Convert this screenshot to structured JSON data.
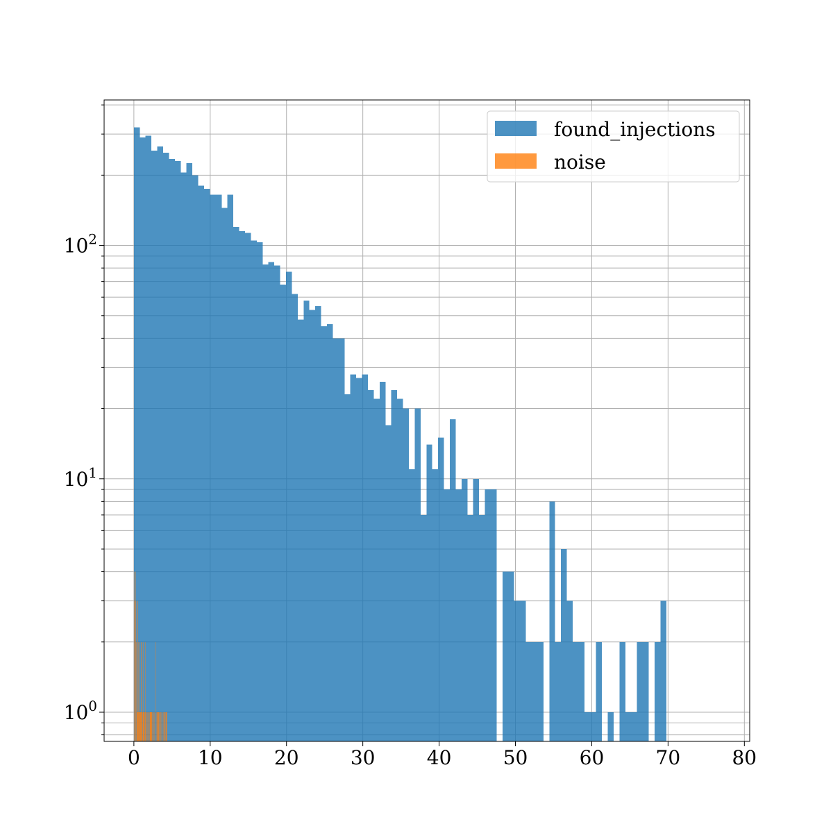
{
  "chart_data": {
    "type": "bar",
    "title": "",
    "xlabel": "",
    "ylabel": "",
    "xlim": [
      -3.9,
      80.7
    ],
    "ylim": [
      0.75,
      420
    ],
    "yscale": "log",
    "grid": true,
    "legend_placement": "top-right",
    "x_ticks": [
      {
        "value": 0,
        "label": "0"
      },
      {
        "value": 10,
        "label": "10"
      },
      {
        "value": 20,
        "label": "20"
      },
      {
        "value": 30,
        "label": "30"
      },
      {
        "value": 40,
        "label": "40"
      },
      {
        "value": 50,
        "label": "50"
      },
      {
        "value": 60,
        "label": "60"
      },
      {
        "value": 70,
        "label": "70"
      },
      {
        "value": 80,
        "label": "80"
      }
    ],
    "y_ticks": [
      {
        "value": 1,
        "base": "10",
        "exp": "0"
      },
      {
        "value": 10,
        "base": "10",
        "exp": "1"
      },
      {
        "value": 100,
        "base": "10",
        "exp": "2"
      }
    ],
    "series": [
      {
        "name": "found_injections",
        "color": "#1f77b4",
        "opacity": 0.8,
        "bin_start": 0.0,
        "bin_width": 0.7667,
        "values": [
          320,
          290,
          295,
          255,
          265,
          250,
          235,
          230,
          205,
          225,
          200,
          180,
          175,
          165,
          165,
          145,
          165,
          120,
          115,
          113,
          105,
          103,
          83,
          85,
          82,
          68,
          77,
          62,
          48,
          58,
          53,
          55,
          45,
          46,
          40,
          40,
          23,
          28,
          27,
          28,
          24,
          22,
          26,
          17,
          24,
          22,
          20,
          11,
          20,
          7,
          14,
          11,
          15,
          9,
          18,
          9,
          10,
          7,
          10,
          7,
          9,
          9,
          0,
          4,
          4,
          3,
          3,
          2,
          2,
          2,
          0,
          8,
          2,
          5,
          3,
          2,
          2,
          1,
          1,
          2,
          0,
          1,
          0,
          2,
          1,
          1,
          2,
          2,
          0,
          2,
          3,
          0,
          0,
          0,
          0,
          0,
          0,
          0,
          0,
          0
        ]
      },
      {
        "name": "noise",
        "color": "#ff7f0e",
        "opacity": 0.8,
        "bin_start": 0.0,
        "bin_width": 0.0434,
        "values": [
          4,
          0,
          3,
          3,
          0,
          4,
          2,
          0,
          0,
          3,
          1,
          1,
          1,
          2,
          1,
          2,
          1,
          1,
          1,
          1,
          1,
          2,
          1,
          2,
          1,
          1,
          0,
          2,
          1,
          0,
          1,
          0,
          1,
          0,
          2,
          1,
          0,
          1,
          1,
          0,
          1,
          0,
          1,
          0,
          0,
          1,
          1,
          0,
          0,
          1,
          1,
          0,
          1,
          0,
          1,
          0,
          1,
          0,
          1,
          1,
          0,
          0,
          1,
          0,
          0,
          2,
          0,
          1,
          0,
          1,
          0,
          1,
          0,
          0,
          1,
          0,
          1,
          0,
          1,
          1,
          0,
          1,
          0,
          1,
          0,
          0,
          1,
          0,
          1,
          0,
          1,
          0,
          1,
          0,
          1,
          0,
          0,
          1,
          0,
          1
        ]
      }
    ]
  }
}
